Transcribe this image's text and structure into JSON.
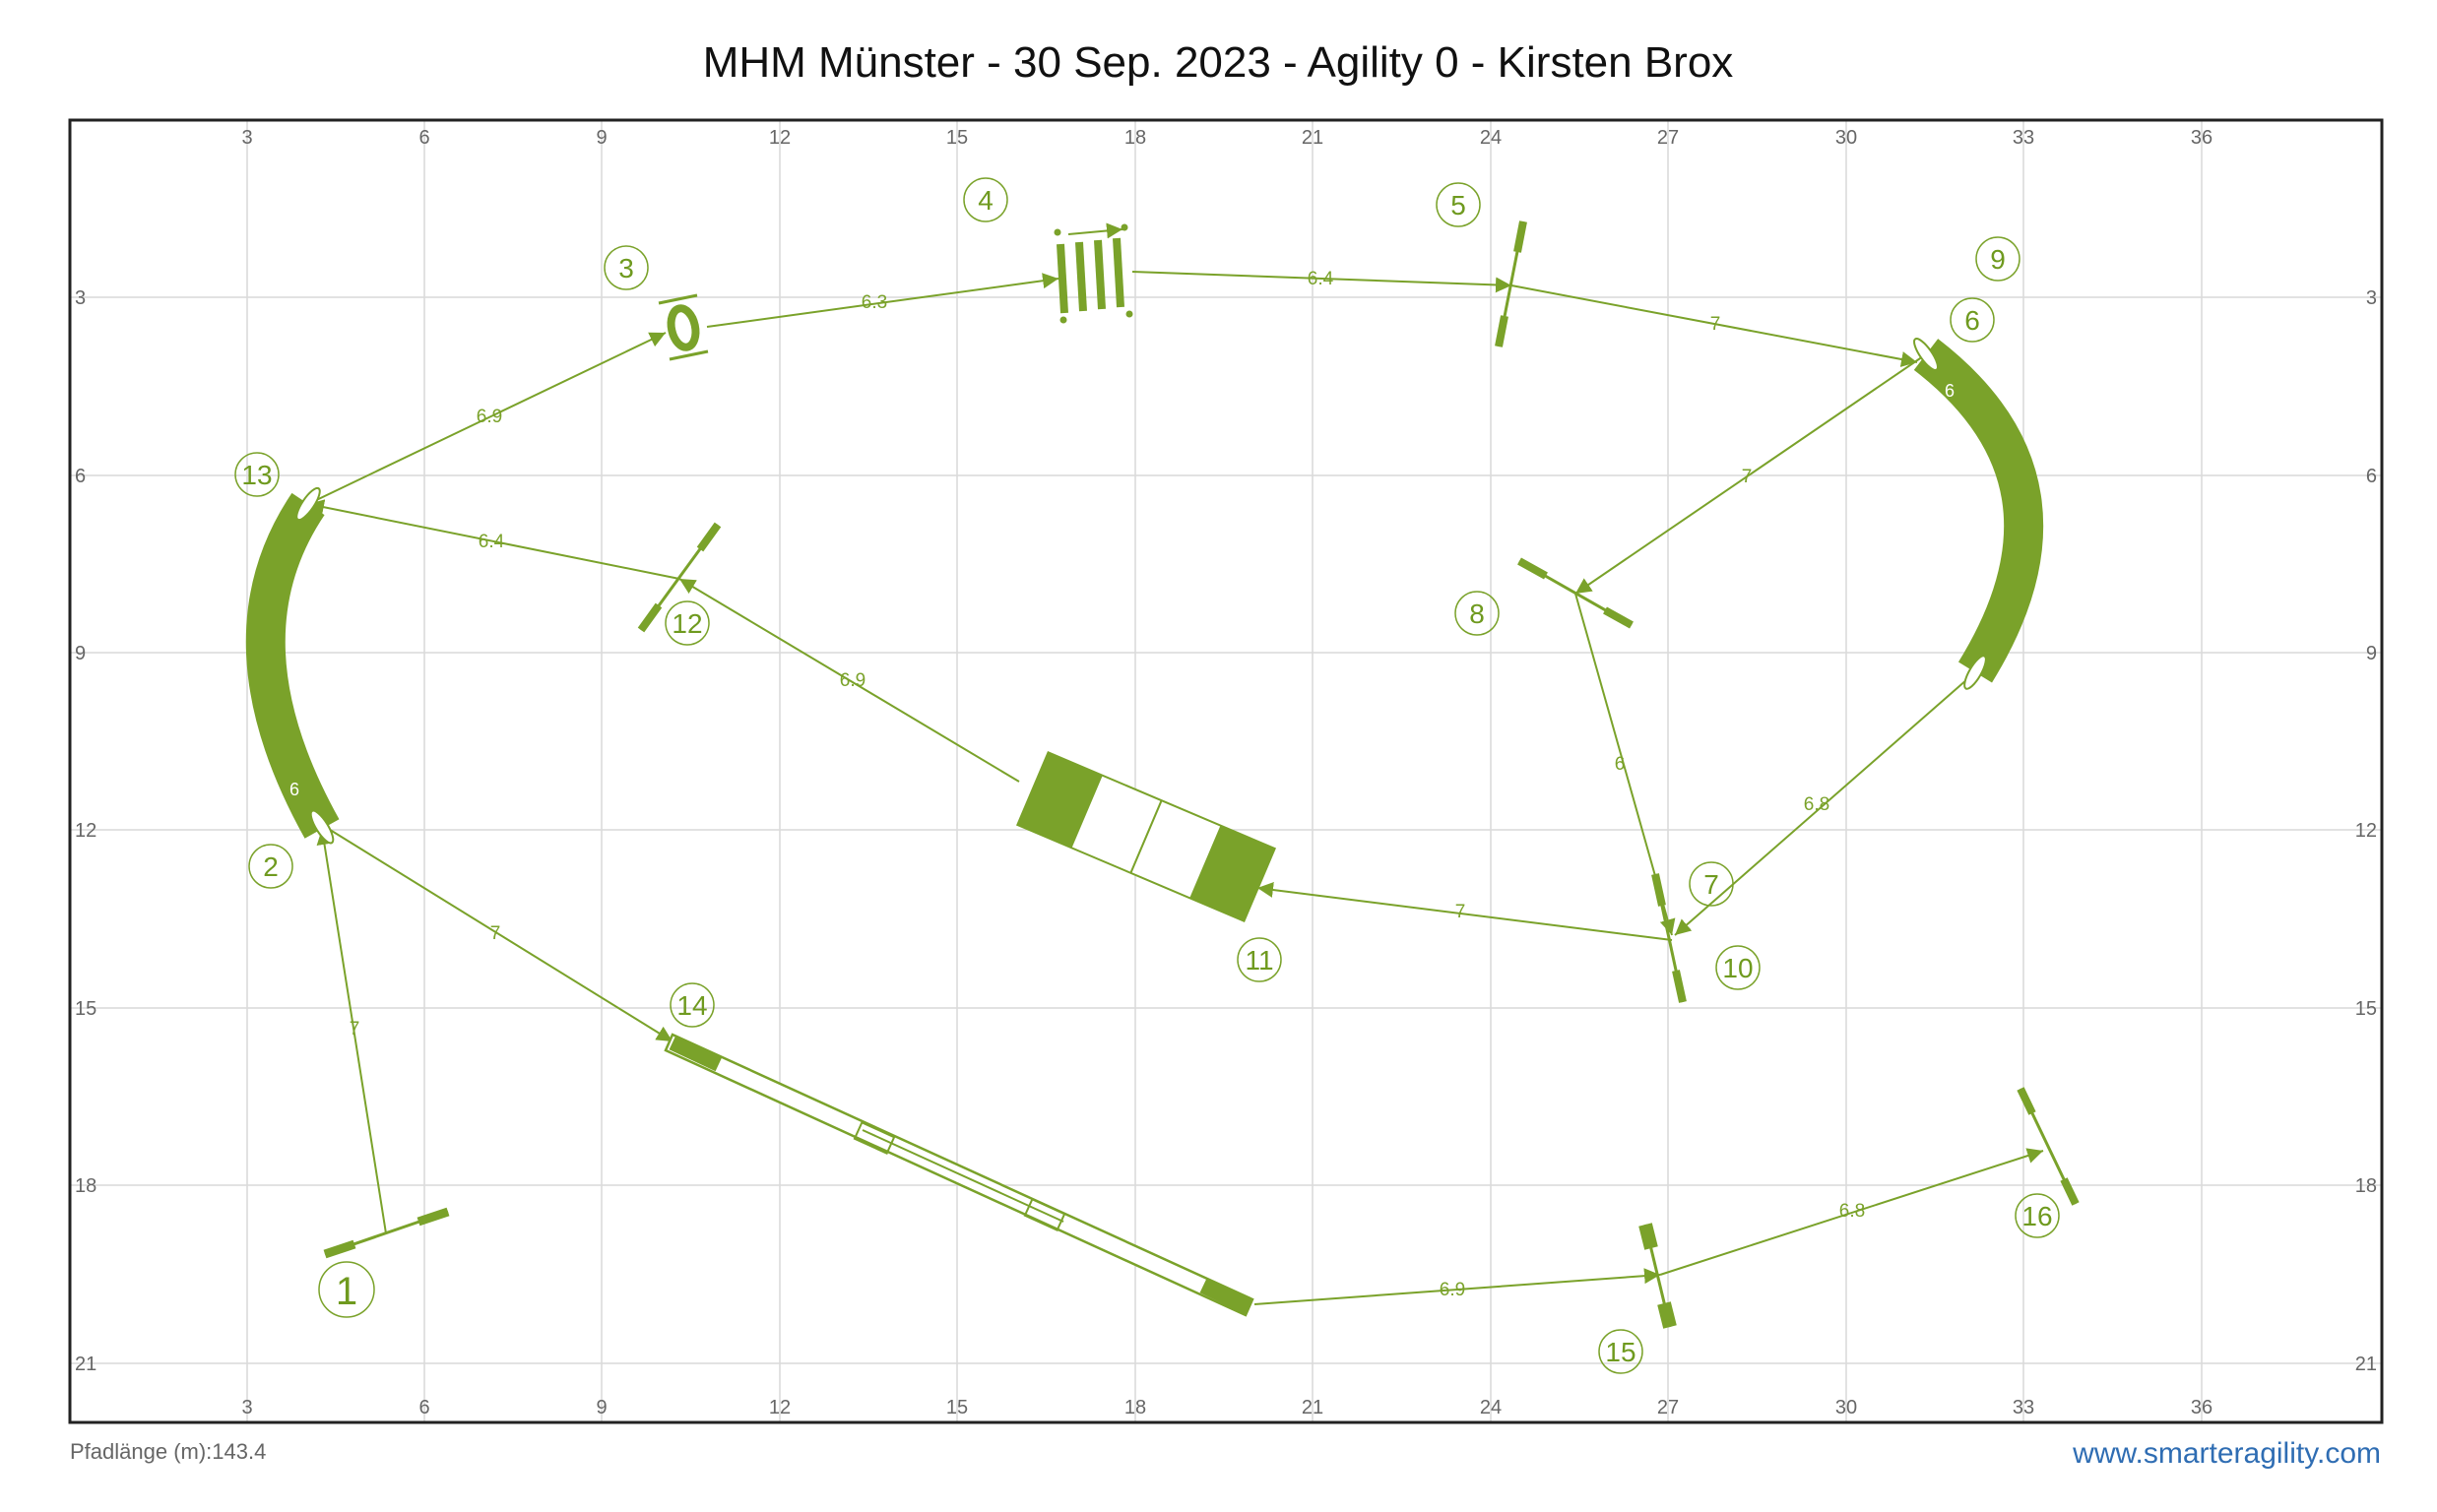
{
  "title": "MHM Münster - 30 Sep. 2023 - Agility 0 - Kirsten Brox",
  "colors": {
    "green": "#7aa22a",
    "grid": "#d9d9d9",
    "border": "#222222",
    "link": "#2f6db3"
  },
  "axes": {
    "x_ticks": [
      "3",
      "6",
      "9",
      "12",
      "15",
      "18",
      "21",
      "24",
      "27",
      "30",
      "33",
      "36"
    ],
    "y_ticks": [
      "3",
      "6",
      "9",
      "12",
      "15",
      "18",
      "21"
    ]
  },
  "footer": {
    "path_length": "Pfadlänge (m):143.4",
    "website": "www.smarteragility.com"
  },
  "obstacles": [
    {
      "type": "jump",
      "name": "obstacle-1-jump"
    },
    {
      "type": "tunnel",
      "name": "obstacle-2-13-tunnel",
      "label": "6"
    },
    {
      "type": "tire",
      "name": "obstacle-3-tire"
    },
    {
      "type": "long-jump",
      "name": "obstacle-4-long-jump"
    },
    {
      "type": "jump",
      "name": "obstacle-5-jump"
    },
    {
      "type": "tunnel",
      "name": "obstacle-6-9-tunnel",
      "label": "6"
    },
    {
      "type": "jump",
      "name": "obstacle-8-jump"
    },
    {
      "type": "jump",
      "name": "obstacle-7-10-jump"
    },
    {
      "type": "table",
      "name": "obstacle-11-table"
    },
    {
      "type": "jump",
      "name": "obstacle-12-jump"
    },
    {
      "type": "dog-walk",
      "name": "obstacle-14-dog-walk"
    },
    {
      "type": "jump",
      "name": "obstacle-15-jump"
    },
    {
      "type": "jump",
      "name": "obstacle-16-jump"
    }
  ],
  "numbers": [
    "1",
    "2",
    "3",
    "4",
    "5",
    "6",
    "7",
    "8",
    "9",
    "10",
    "11",
    "12",
    "13",
    "14",
    "15",
    "16"
  ],
  "path_distances": [
    "7",
    "6.9",
    "6.3",
    "6.4",
    "7",
    "7",
    "6",
    "6.8",
    "7",
    "6.9",
    "6.4",
    "7",
    "6.9",
    "6.8"
  ]
}
